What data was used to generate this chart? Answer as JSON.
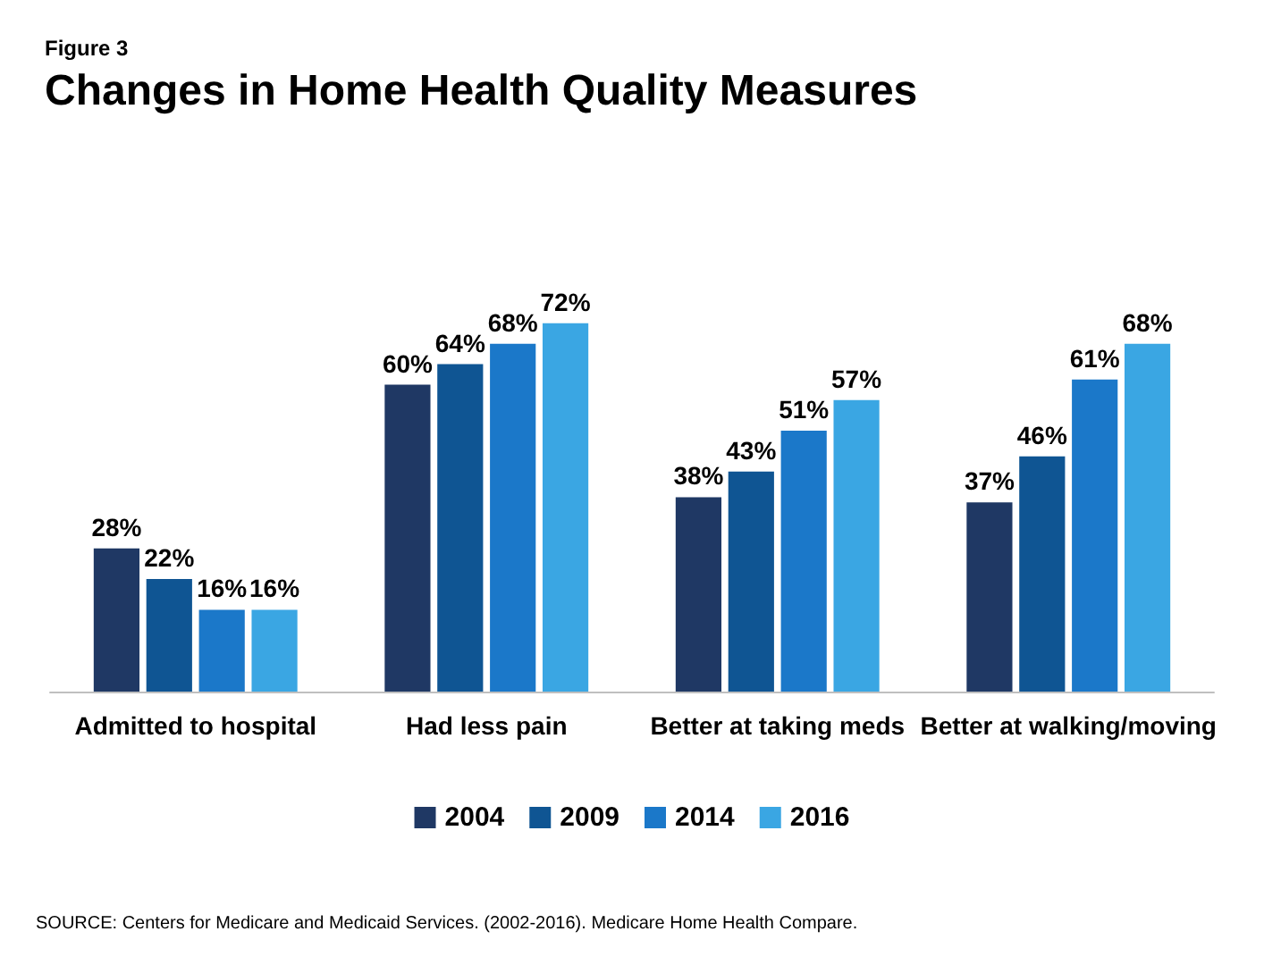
{
  "chart_data": {
    "type": "bar",
    "subtitle": "Figure 3",
    "title": "Changes in Home Health Quality Measures",
    "categories": [
      "Admitted to hospital",
      "Had less pain",
      "Better at taking meds",
      "Better at walking/moving"
    ],
    "series": [
      {
        "name": "2004",
        "color": "#1f3864",
        "values": [
          28,
          60,
          38,
          37
        ],
        "value_labels": [
          "28%",
          "60%",
          "38%",
          "37%"
        ]
      },
      {
        "name": "2009",
        "color": "#0f5593",
        "values": [
          22,
          64,
          43,
          46
        ],
        "value_labels": [
          "22%",
          "64%",
          "43%",
          "46%"
        ]
      },
      {
        "name": "2014",
        "color": "#1b78c9",
        "values": [
          16,
          68,
          51,
          61
        ],
        "value_labels": [
          "16%",
          "68%",
          "51%",
          "61%"
        ]
      },
      {
        "name": "2016",
        "color": "#3aa6e3",
        "values": [
          16,
          72,
          57,
          68
        ],
        "value_labels": [
          "16%",
          "72%",
          "57%",
          "68%"
        ]
      }
    ],
    "legend": "bottom",
    "annotations": [
      "SOURCE: Centers for Medicare and Medicaid Services. (2002-2016). Medicare Home Health Compare."
    ]
  }
}
